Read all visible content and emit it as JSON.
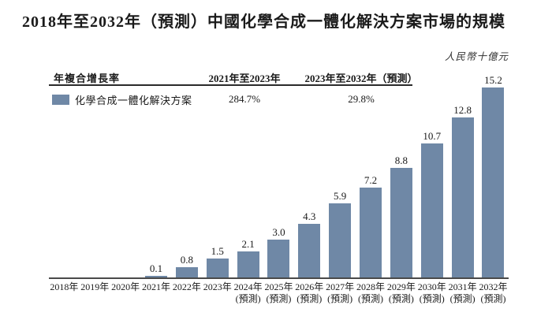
{
  "title": "2018年至2032年（預測）中國化學合成一體化解決方案市場的規模",
  "unit_label": "人民幣十億元",
  "cagr_table": {
    "header": {
      "metric": "年複合增長率",
      "period1": "2021年至2023年",
      "period2": "2023年至2032年（預測）"
    },
    "row": {
      "legend_label": "化學合成一體化解決方案",
      "period1_value": "284.7%",
      "period2_value": "29.8%"
    }
  },
  "colors": {
    "bar": "#6F88A6",
    "axis": "#4a4a4a",
    "text": "#1a1a1a"
  },
  "chart_data": {
    "type": "bar",
    "title": "2018年至2032年（預測）中國化學合成一體化解決方案市場的規模",
    "ylabel": "人民幣十億元",
    "ylim": [
      0,
      16
    ],
    "grid": false,
    "legend": [
      "化學合成一體化解決方案"
    ],
    "legend_position": "top-left-table",
    "bar_color": "#6F88A6",
    "categories": [
      "2018年",
      "2019年",
      "2020年",
      "2021年",
      "2022年",
      "2023年",
      "2024年",
      "2025年",
      "2026年",
      "2027年",
      "2028年",
      "2029年",
      "2030年",
      "2031年",
      "2032年"
    ],
    "forecast_suffix": "(預測)",
    "forecast_from_index": 6,
    "values": [
      0,
      0,
      0,
      0.1,
      0.8,
      1.5,
      2.1,
      3.0,
      4.3,
      5.9,
      7.2,
      8.8,
      10.7,
      12.8,
      15.2
    ],
    "value_labels": [
      "",
      "",
      "",
      "0.1",
      "0.8",
      "1.5",
      "2.1",
      "3.0",
      "4.3",
      "5.9",
      "7.2",
      "8.8",
      "10.7",
      "12.8",
      "15.2"
    ]
  }
}
